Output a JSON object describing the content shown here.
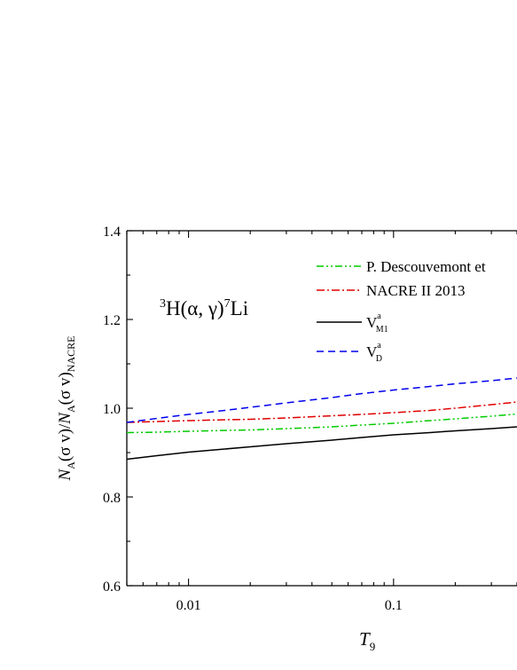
{
  "chart_data": {
    "type": "line",
    "panel_label": {
      "t_sup": "3",
      "t_el": "H(α, γ)",
      "li_sup": "7",
      "li_el": "Li"
    },
    "xlabel": {
      "symbol": "T",
      "sub": "9"
    },
    "ylabel": {
      "n1": "N",
      "s1": "A",
      "m1": "(σ v)/",
      "n2": "N",
      "s2": "A",
      "m2": "(σ v)",
      "s3": "NACRE"
    },
    "x_scale": "log",
    "xlim": [
      0.005,
      0.4
    ],
    "ylim": [
      0.6,
      1.4
    ],
    "x_ticks": [
      {
        "value": 0.01,
        "label": "0.01"
      },
      {
        "value": 0.1,
        "label": "0.1"
      }
    ],
    "y_ticks": [
      {
        "value": 0.6,
        "label": "0.6"
      },
      {
        "value": 0.8,
        "label": "0.8"
      },
      {
        "value": 1.0,
        "label": "1.0"
      },
      {
        "value": 1.2,
        "label": "1.2"
      },
      {
        "value": 1.4,
        "label": "1.4"
      }
    ],
    "grid": false,
    "legend_position": "top-right",
    "x": [
      0.005,
      0.007,
      0.01,
      0.015,
      0.02,
      0.03,
      0.05,
      0.07,
      0.1,
      0.15,
      0.2,
      0.3,
      0.4
    ],
    "series": [
      {
        "name": "P. Descouvemont et",
        "color": "#00cc00",
        "dash": "dash-dot-dot",
        "values": [
          0.945,
          0.946,
          0.948,
          0.95,
          0.951,
          0.954,
          0.958,
          0.962,
          0.966,
          0.972,
          0.976,
          0.982,
          0.987
        ]
      },
      {
        "name": "NACRE II 2013",
        "color": "#e00000",
        "dash": "dash-dot",
        "values": [
          0.968,
          0.97,
          0.972,
          0.974,
          0.975,
          0.978,
          0.983,
          0.986,
          0.99,
          0.995,
          1.0,
          1.008,
          1.014
        ]
      },
      {
        "name": "V^a_M1",
        "legend_base": "V",
        "legend_sup": "a",
        "legend_sub": "M1",
        "color": "#000000",
        "dash": "solid",
        "values": [
          0.885,
          0.893,
          0.901,
          0.908,
          0.913,
          0.92,
          0.928,
          0.934,
          0.94,
          0.945,
          0.949,
          0.954,
          0.958
        ]
      },
      {
        "name": "V^a_D",
        "legend_base": "V",
        "legend_sup": "a",
        "legend_sub": "D",
        "color": "#0000ee",
        "dash": "dash",
        "values": [
          0.968,
          0.977,
          0.986,
          0.995,
          1.002,
          1.012,
          1.024,
          1.033,
          1.041,
          1.049,
          1.055,
          1.062,
          1.068
        ]
      }
    ]
  }
}
